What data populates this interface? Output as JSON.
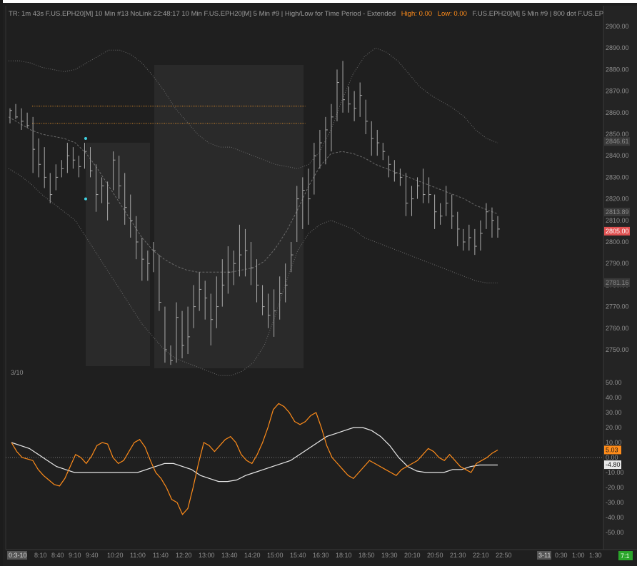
{
  "header": {
    "segments": [
      {
        "text": "TR: 1m 43s F.US.EPH20[M]  10 Min   #13 NoLink 22:48:17 10 Min  F.US.EPH20[M]  5 Min   #9  |  High/Low for Time Period - Extended",
        "color": "#9a9a9a"
      },
      {
        "text": "High: 0.00",
        "color": "#ff8c1a"
      },
      {
        "text": "Low: 0.00",
        "color": "#ff8c1a"
      },
      {
        "text": "F.US.EPH20[M]  5 Min   #9  |  800  dot  F.US.EP",
        "color": "#9a9a9a"
      }
    ]
  },
  "price_axis": {
    "ticks": [
      "2900.00",
      "2890.00",
      "2880.00",
      "2870.00",
      "2860.00",
      "2850.00",
      "2840.00",
      "2830.00",
      "2820.00",
      "2810.00",
      "2800.00",
      "2790.00",
      "2780.00",
      "2770.00",
      "2760.00",
      "2750.00"
    ],
    "tags": [
      {
        "name": "upper-band-tag",
        "text": "2846.61",
        "value": 2846.61,
        "bg": "#3a3a3a",
        "fg": "#8a8a8a"
      },
      {
        "name": "mid-band-tag",
        "text": "2813.89",
        "value": 2813.89,
        "bg": "#3a3a3a",
        "fg": "#8a8a8a"
      },
      {
        "name": "last-price-tag",
        "text": "2805.00",
        "value": 2805.0,
        "bg": "#e05050",
        "fg": "#ffffff"
      },
      {
        "name": "lower-band-tag",
        "text": "2781.16",
        "value": 2781.16,
        "bg": "#3a3a3a",
        "fg": "#8a8a8a"
      }
    ]
  },
  "osc_axis": {
    "ticks": [
      "50.00",
      "40.00",
      "30.00",
      "20.00",
      "10.00",
      "0.00",
      "-10.00",
      "-20.00",
      "-30.00",
      "-40.00",
      "-50.00"
    ],
    "tags": [
      {
        "name": "osc-fast-tag",
        "text": "5.03",
        "value": 5.03,
        "bg": "#ff8c1a",
        "fg": "#1a1a1a"
      },
      {
        "name": "osc-slow-tag",
        "text": "-4.80",
        "value": -4.8,
        "bg": "#e8e8e8",
        "fg": "#1a1a1a"
      }
    ]
  },
  "date_label": "3/10",
  "time_axis": {
    "start_badge": "0:3-10",
    "labels": [
      "8:10",
      "8:40",
      "9:10",
      "9:40",
      "10:20",
      "11:00",
      "11:40",
      "12:20",
      "13:00",
      "13:40",
      "14:20",
      "15:00",
      "15:40",
      "16:30",
      "18:10",
      "18:50",
      "19:30",
      "20:10",
      "20:50",
      "21:30",
      "22:10",
      "22:50"
    ],
    "right_badge": "3-11",
    "right_labels": [
      "0:30",
      "1:00",
      "1:30"
    ],
    "corner_badge": "7:1"
  },
  "chart_data": {
    "type": "ohlc",
    "price_range": [
      2740,
      2905
    ],
    "osc_range": [
      -60,
      55
    ],
    "bars": [
      [
        2862,
        2855,
        2861
      ],
      [
        2864,
        2857,
        2858
      ],
      [
        2862,
        2852,
        2856
      ],
      [
        2860,
        2853,
        2854
      ],
      [
        2858,
        2832,
        2843
      ],
      [
        2848,
        2830,
        2836
      ],
      [
        2844,
        2825,
        2830
      ],
      [
        2832,
        2818,
        2822
      ],
      [
        2836,
        2824,
        2830
      ],
      [
        2838,
        2830,
        2834
      ],
      [
        2846,
        2832,
        2840
      ],
      [
        2844,
        2834,
        2838
      ],
      [
        2840,
        2830,
        2835
      ],
      [
        2846,
        2834,
        2842
      ],
      [
        2844,
        2830,
        2833
      ],
      [
        2836,
        2814,
        2822
      ],
      [
        2830,
        2818,
        2826
      ],
      [
        2828,
        2810,
        2818
      ],
      [
        2842,
        2824,
        2838
      ],
      [
        2840,
        2820,
        2826
      ],
      [
        2832,
        2808,
        2816
      ],
      [
        2822,
        2802,
        2810
      ],
      [
        2812,
        2792,
        2800
      ],
      [
        2802,
        2782,
        2792
      ],
      [
        2796,
        2782,
        2790
      ],
      [
        2800,
        2786,
        2796
      ],
      [
        2794,
        2768,
        2772
      ],
      [
        2770,
        2744,
        2750
      ],
      [
        2752,
        2743,
        2745
      ],
      [
        2772,
        2744,
        2765
      ],
      [
        2768,
        2746,
        2752
      ],
      [
        2770,
        2748,
        2756
      ],
      [
        2780,
        2760,
        2770
      ],
      [
        2786,
        2768,
        2778
      ],
      [
        2782,
        2764,
        2774
      ],
      [
        2776,
        2752,
        2764
      ],
      [
        2784,
        2760,
        2770
      ],
      [
        2792,
        2770,
        2780
      ],
      [
        2798,
        2776,
        2786
      ],
      [
        2796,
        2780,
        2790
      ],
      [
        2808,
        2784,
        2794
      ],
      [
        2806,
        2784,
        2796
      ],
      [
        2800,
        2780,
        2788
      ],
      [
        2792,
        2772,
        2780
      ],
      [
        2780,
        2766,
        2770
      ],
      [
        2776,
        2760,
        2766
      ],
      [
        2778,
        2756,
        2768
      ],
      [
        2784,
        2764,
        2776
      ],
      [
        2790,
        2772,
        2780
      ],
      [
        2800,
        2786,
        2794
      ],
      [
        2826,
        2800,
        2820
      ],
      [
        2830,
        2806,
        2824
      ],
      [
        2834,
        2808,
        2820
      ],
      [
        2846,
        2822,
        2840
      ],
      [
        2852,
        2834,
        2846
      ],
      [
        2858,
        2836,
        2852
      ],
      [
        2864,
        2842,
        2858
      ],
      [
        2880,
        2856,
        2874
      ],
      [
        2884,
        2860,
        2866
      ],
      [
        2872,
        2860,
        2864
      ],
      [
        2870,
        2856,
        2862
      ],
      [
        2874,
        2858,
        2868
      ],
      [
        2866,
        2850,
        2856
      ],
      [
        2856,
        2840,
        2848
      ],
      [
        2852,
        2840,
        2846
      ],
      [
        2846,
        2838,
        2842
      ],
      [
        2840,
        2830,
        2836
      ],
      [
        2838,
        2828,
        2832
      ],
      [
        2834,
        2826,
        2830
      ],
      [
        2832,
        2812,
        2818
      ],
      [
        2826,
        2812,
        2820
      ],
      [
        2830,
        2820,
        2826
      ],
      [
        2834,
        2818,
        2822
      ],
      [
        2830,
        2818,
        2822
      ],
      [
        2822,
        2806,
        2814
      ],
      [
        2818,
        2808,
        2812
      ],
      [
        2826,
        2812,
        2818
      ],
      [
        2822,
        2806,
        2812
      ],
      [
        2814,
        2798,
        2806
      ],
      [
        2806,
        2796,
        2800
      ],
      [
        2808,
        2796,
        2802
      ],
      [
        2806,
        2794,
        2798
      ],
      [
        2810,
        2796,
        2804
      ],
      [
        2818,
        2806,
        2814
      ],
      [
        2816,
        2802,
        2810
      ],
      [
        2812,
        2802,
        2806
      ]
    ],
    "upper_band": [
      2884,
      2884,
      2883,
      2881,
      2880,
      2879,
      2880,
      2883,
      2886,
      2889,
      2889,
      2887,
      2883,
      2877,
      2870,
      2862,
      2856,
      2850,
      2846,
      2844,
      2844,
      2842,
      2840,
      2838,
      2836,
      2835,
      2834,
      2836,
      2842,
      2852,
      2866,
      2878,
      2886,
      2890,
      2888,
      2884,
      2878,
      2872,
      2868,
      2865,
      2862,
      2858,
      2852,
      2848,
      2846
    ],
    "middle_band": [
      2858,
      2855,
      2852,
      2850,
      2849,
      2848,
      2846,
      2841,
      2834,
      2826,
      2818,
      2810,
      2802,
      2796,
      2792,
      2789,
      2787,
      2786,
      2786,
      2786,
      2786,
      2787,
      2788,
      2791,
      2797,
      2805,
      2815,
      2826,
      2835,
      2841,
      2842,
      2841,
      2839,
      2836,
      2834,
      2832,
      2830,
      2828,
      2826,
      2824,
      2822,
      2820,
      2817,
      2815,
      2813
    ],
    "lower_band": [
      2834,
      2831,
      2827,
      2822,
      2818,
      2814,
      2810,
      2802,
      2794,
      2786,
      2778,
      2770,
      2762,
      2756,
      2750,
      2746,
      2744,
      2742,
      2740,
      2738,
      2738,
      2740,
      2744,
      2752,
      2766,
      2782,
      2796,
      2804,
      2808,
      2810,
      2808,
      2806,
      2802,
      2800,
      2798,
      2796,
      2794,
      2792,
      2790,
      2788,
      2786,
      2784,
      2782,
      2781,
      2781
    ],
    "resistance_lines": [
      2863,
      2855
    ],
    "marker_points": [
      [
        2848,
        "cyan"
      ],
      [
        2820,
        "cyan"
      ]
    ],
    "osc_fast": [
      10,
      4,
      0,
      -1,
      -2,
      -8,
      -12,
      -15,
      -18,
      -19,
      -14,
      -6,
      2,
      0,
      -4,
      1,
      8,
      10,
      9,
      0,
      -4,
      -2,
      4,
      10,
      12,
      7,
      -2,
      -10,
      -14,
      -20,
      -28,
      -30,
      -38,
      -34,
      -20,
      -4,
      10,
      8,
      4,
      8,
      12,
      14,
      10,
      2,
      -2,
      -4,
      2,
      10,
      20,
      32,
      36,
      34,
      30,
      24,
      22,
      24,
      28,
      30,
      20,
      8,
      0,
      -4,
      -8,
      -12,
      -14,
      -10,
      -6,
      -2,
      -4,
      -6,
      -8,
      -10,
      -12,
      -8,
      -6,
      -4,
      -2,
      2,
      6,
      4,
      0,
      -2,
      2,
      -2,
      -6,
      -8,
      -10,
      -4,
      -2,
      0,
      3,
      5
    ],
    "osc_slow": [
      10,
      8,
      6,
      2,
      -2,
      -6,
      -8,
      -10,
      -10,
      -10,
      -10,
      -10,
      -10,
      -10,
      -10,
      -8,
      -6,
      -4,
      -4,
      -6,
      -8,
      -12,
      -14,
      -16,
      -16,
      -15,
      -12,
      -10,
      -8,
      -6,
      -4,
      -2,
      2,
      6,
      10,
      14,
      16,
      18,
      20,
      20,
      18,
      14,
      8,
      0,
      -6,
      -9,
      -10,
      -10,
      -10,
      -8,
      -8,
      -6,
      -5,
      -5,
      -5
    ]
  }
}
